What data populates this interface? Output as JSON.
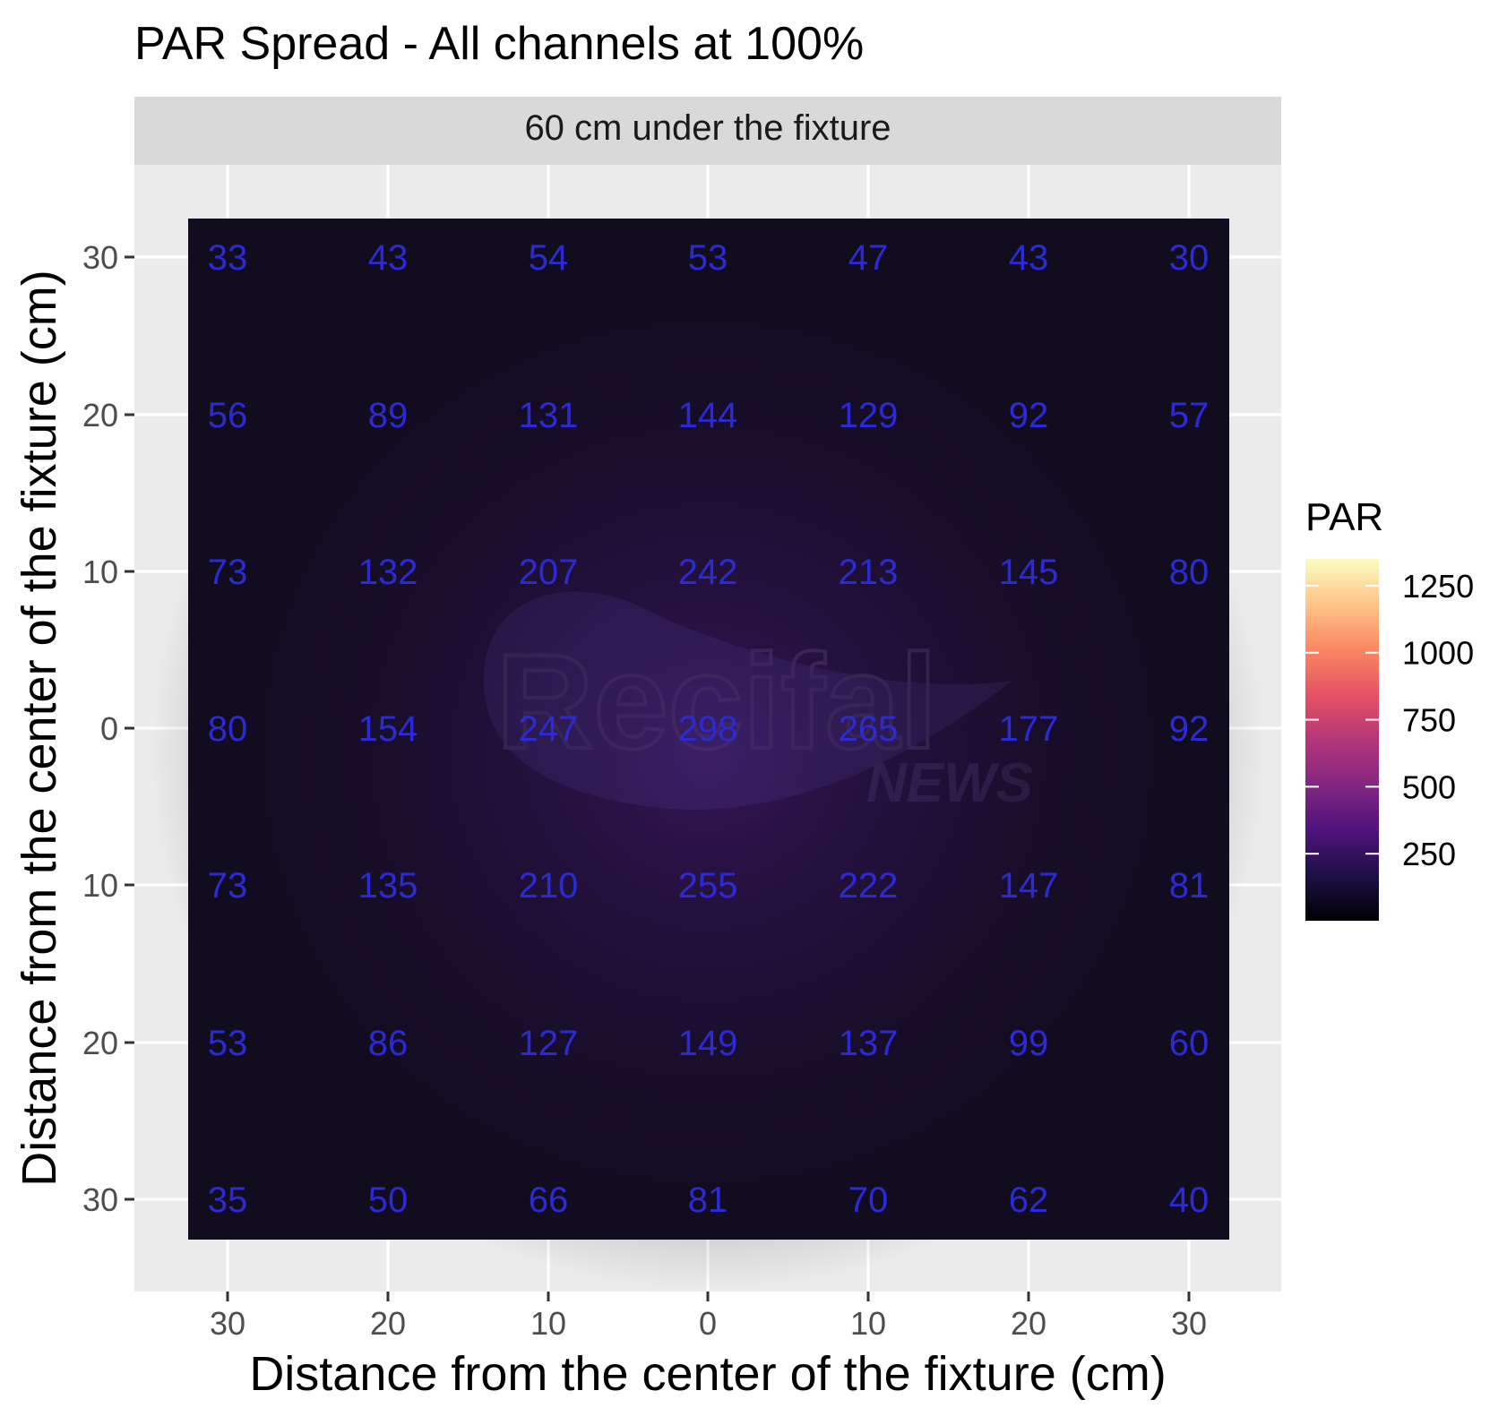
{
  "chart_data": {
    "type": "heatmap",
    "title": "PAR Spread - All channels at 100%",
    "facet_label": "60 cm under the fixture",
    "xlabel": "Distance from the center of the fixture (cm)",
    "ylabel": "Distance from the center of the fixture (cm)",
    "x_ticks": [
      "30",
      "20",
      "10",
      "0",
      "10",
      "20",
      "30"
    ],
    "y_ticks": [
      "30",
      "20",
      "10",
      "0",
      "10",
      "20",
      "30"
    ],
    "grid": true,
    "rows": [
      [
        33,
        43,
        54,
        53,
        47,
        43,
        30
      ],
      [
        56,
        89,
        131,
        144,
        129,
        92,
        57
      ],
      [
        73,
        132,
        207,
        242,
        213,
        145,
        80
      ],
      [
        80,
        154,
        247,
        298,
        265,
        177,
        92
      ],
      [
        73,
        135,
        210,
        255,
        222,
        147,
        81
      ],
      [
        53,
        86,
        127,
        149,
        137,
        99,
        60
      ],
      [
        35,
        50,
        66,
        81,
        70,
        62,
        40
      ]
    ],
    "legend": {
      "title": "PAR",
      "position": "right",
      "ticks": [
        "1250",
        "1000",
        "750",
        "500",
        "250"
      ],
      "tick_values": [
        1250,
        1000,
        750,
        500,
        250
      ],
      "range": [
        0,
        1350
      ],
      "palette": "magma"
    },
    "label_color": "#2b2bd6",
    "watermark": [
      "Recifal",
      "NEWS"
    ]
  }
}
